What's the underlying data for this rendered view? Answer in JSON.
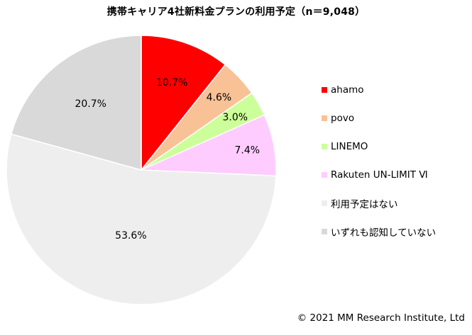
{
  "chart_data": {
    "type": "pie",
    "title": "携帯キャリア4社新料金プランの利用予定（n＝9,048）",
    "slices": [
      {
        "name": "ahamo",
        "value": 10.7,
        "label": "10.7%",
        "color": "#ff0000"
      },
      {
        "name": "povo",
        "value": 4.6,
        "label": "4.6%",
        "color": "#f8c196"
      },
      {
        "name": "LINEMO",
        "value": 3.0,
        "label": "3.0%",
        "color": "#ccff99"
      },
      {
        "name": "Rakuten UN-LIMIT Ⅵ",
        "value": 7.4,
        "label": "7.4%",
        "color": "#ffccff"
      },
      {
        "name": "利用予定はない",
        "value": 53.6,
        "label": "53.6%",
        "color": "#eeeeee"
      },
      {
        "name": "いずれも認知していない",
        "value": 20.7,
        "label": "20.7%",
        "color": "#d9d9d9"
      }
    ],
    "legend_position": "right"
  },
  "footer": {
    "copyright": "© 2021 MM Research Institute, Ltd"
  }
}
